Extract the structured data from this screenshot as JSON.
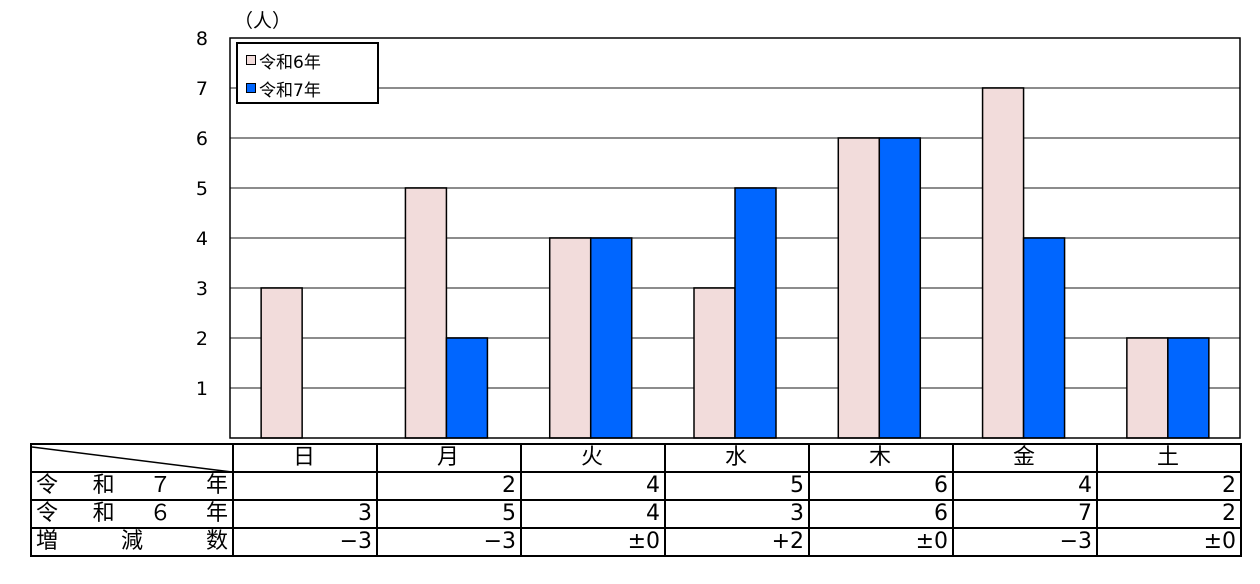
{
  "chart_data": {
    "type": "bar",
    "y_unit": "（人）",
    "ylim": [
      0,
      8
    ],
    "yticks": [
      1,
      2,
      3,
      4,
      5,
      6,
      7,
      8
    ],
    "grid": true,
    "legend_position": "top-left",
    "categories": [
      "日",
      "月",
      "火",
      "水",
      "木",
      "金",
      "土"
    ],
    "series": [
      {
        "name": "令和6年",
        "color": "#f2dcdb",
        "values": [
          3,
          5,
          4,
          3,
          6,
          7,
          2
        ]
      },
      {
        "name": "令和7年",
        "color": "#0066ff",
        "values": [
          0,
          2,
          4,
          5,
          6,
          4,
          2
        ]
      }
    ]
  },
  "table": {
    "rows": [
      {
        "label": "令和７年",
        "cells": [
          "",
          "2",
          "4",
          "5",
          "6",
          "4",
          "2"
        ]
      },
      {
        "label": "令和６年",
        "cells": [
          "3",
          "5",
          "4",
          "3",
          "6",
          "7",
          "2"
        ]
      },
      {
        "label": "増減数",
        "cells": [
          "−3",
          "−3",
          "±0",
          "+2",
          "±0",
          "−3",
          "±0"
        ]
      }
    ]
  }
}
